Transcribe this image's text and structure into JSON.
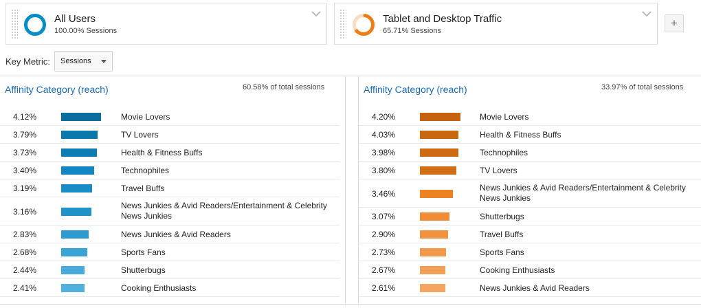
{
  "segments": [
    {
      "name": "All Users",
      "sub": "100.00% Sessions",
      "color": "#058dc7",
      "fill": 1.0
    },
    {
      "name": "Tablet and Desktop Traffic",
      "sub": "65.71% Sessions",
      "color": "#ed7e17",
      "fill": 0.6571
    }
  ],
  "add_button": "+",
  "key_metric": {
    "label": "Key Metric:",
    "value": "Sessions"
  },
  "panels": [
    {
      "title": "Affinity Category (reach)",
      "total": "60.58% of total sessions",
      "rows": [
        {
          "pct": "4.12%",
          "value": 4.12,
          "name": "Movie Lovers",
          "color": "#0a6f9e"
        },
        {
          "pct": "3.79%",
          "value": 3.79,
          "name": "TV Lovers",
          "color": "#0b78ab"
        },
        {
          "pct": "3.73%",
          "value": 3.73,
          "name": "Health & Fitness Buffs",
          "color": "#0d7db4"
        },
        {
          "pct": "3.40%",
          "value": 3.4,
          "name": "Technophiles",
          "color": "#1186c0"
        },
        {
          "pct": "3.19%",
          "value": 3.19,
          "name": "Travel Buffs",
          "color": "#1a8dc6"
        },
        {
          "pct": "3.16%",
          "value": 3.16,
          "name": "News Junkies & Avid Readers/Entertainment & Celebrity News Junkies",
          "color": "#1f92ca",
          "tall": true
        },
        {
          "pct": "2.83%",
          "value": 2.83,
          "name": "News Junkies & Avid Readers",
          "color": "#2b9bd0"
        },
        {
          "pct": "2.68%",
          "value": 2.68,
          "name": "Sports Fans",
          "color": "#3aa3d5"
        },
        {
          "pct": "2.44%",
          "value": 2.44,
          "name": "Shutterbugs",
          "color": "#48abd9"
        },
        {
          "pct": "2.41%",
          "value": 2.41,
          "name": "Cooking Enthusiasts",
          "color": "#52b0dc"
        }
      ]
    },
    {
      "title": "Affinity Category (reach)",
      "total": "33.97% of total sessions",
      "rows": [
        {
          "pct": "4.20%",
          "value": 4.2,
          "name": "Movie Lovers",
          "color": "#c4620f"
        },
        {
          "pct": "4.03%",
          "value": 4.03,
          "name": "Health & Fitness Buffs",
          "color": "#c96610"
        },
        {
          "pct": "3.98%",
          "value": 3.98,
          "name": "Technophiles",
          "color": "#cd6a12"
        },
        {
          "pct": "3.80%",
          "value": 3.8,
          "name": "TV Lovers",
          "color": "#d26e14"
        },
        {
          "pct": "3.46%",
          "value": 3.46,
          "name": "News Junkies & Avid Readers/Entertainment & Celebrity News Junkies",
          "color": "#ec8221",
          "tall": true
        },
        {
          "pct": "3.07%",
          "value": 3.07,
          "name": "Shutterbugs",
          "color": "#ef8c35"
        },
        {
          "pct": "2.90%",
          "value": 2.9,
          "name": "Travel Buffs",
          "color": "#f0923f"
        },
        {
          "pct": "2.73%",
          "value": 2.73,
          "name": "Sports Fans",
          "color": "#f29a4c"
        },
        {
          "pct": "2.67%",
          "value": 2.67,
          "name": "Cooking Enthusiasts",
          "color": "#f3a057"
        },
        {
          "pct": "2.61%",
          "value": 2.61,
          "name": "News Junkies & Avid Readers",
          "color": "#f4a660"
        }
      ]
    }
  ]
}
